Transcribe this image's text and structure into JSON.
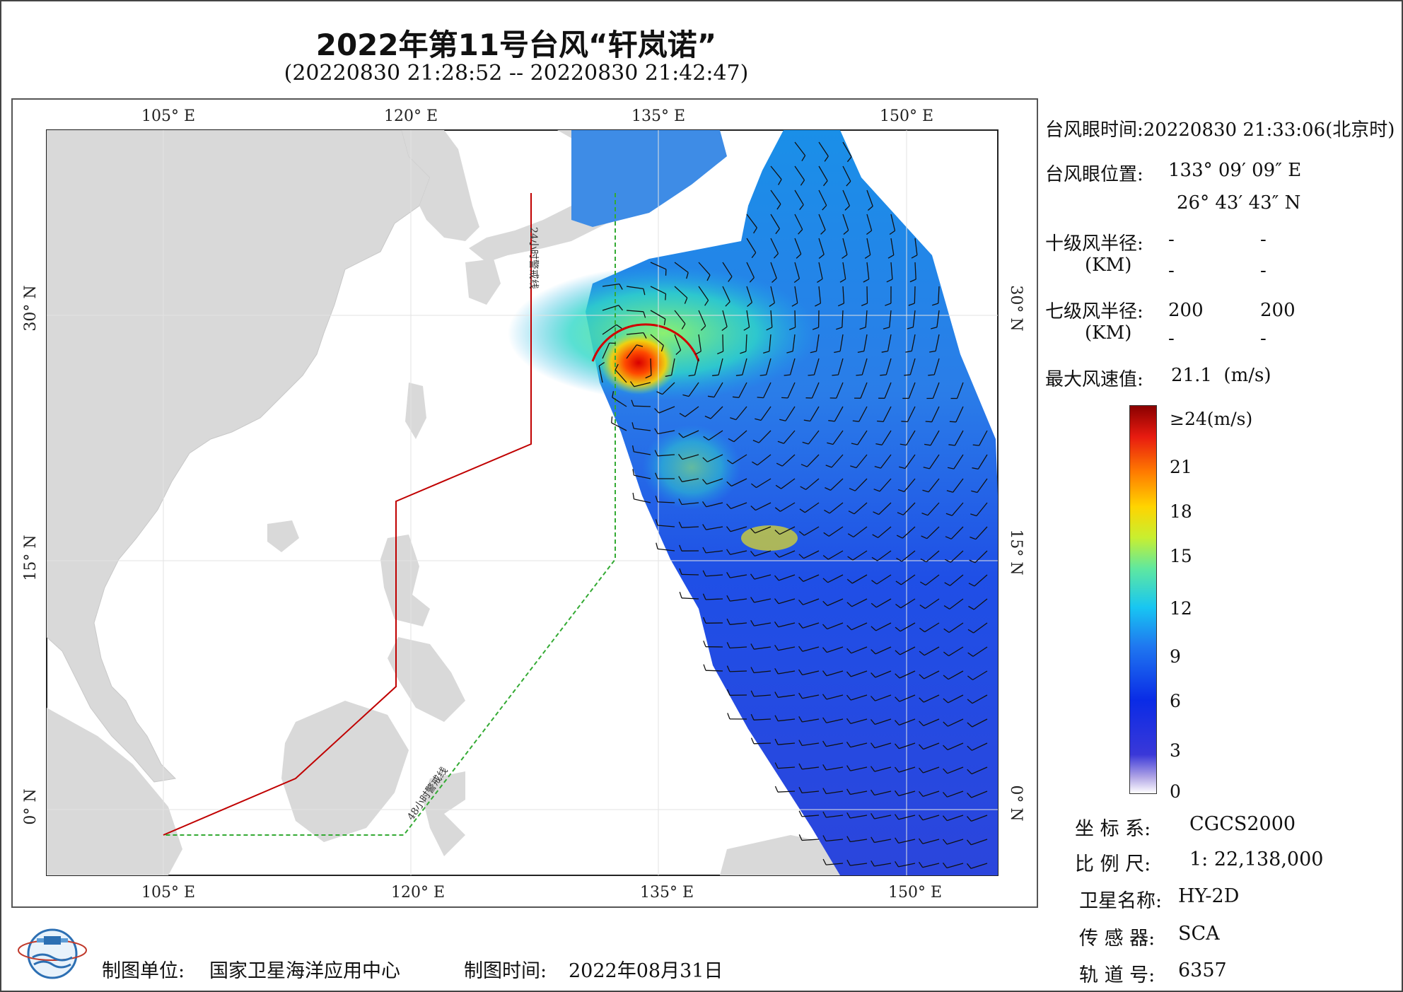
{
  "header": {
    "title": "2022年第11号台风“轩岚诺”",
    "subtitle": "(20220830 21:28:52 -- 20220830 21:42:47)"
  },
  "map": {
    "lon_ticks": [
      "105° E",
      "120° E",
      "135° E",
      "150° E"
    ],
    "lat_ticks": [
      "30° N",
      "15° N",
      "0° N"
    ],
    "warning_24h_label": "24小时警戒线",
    "warning_48h_label": "48小时警戒线",
    "colors": {
      "land": "#d9d9d9",
      "ocean": "#ffffff",
      "warning_24h": "#c00000",
      "warning_48h": "#33aa33"
    }
  },
  "info": {
    "eye_time_label": "台风眼时间:",
    "eye_time_value": "20220830 21:33:06(北京时)",
    "eye_pos_label": "台风眼位置:",
    "eye_pos_lon": "133° 09′ 09″ E",
    "eye_pos_lat": "26° 43′ 43″ N",
    "r10_label": "十级风半径:",
    "r10_unit": "(KM)",
    "r10_values": [
      "-",
      "-",
      "-",
      "-"
    ],
    "r7_label": "七级风半径:",
    "r7_unit": "(KM)",
    "r7_values": [
      "200",
      "200",
      "-",
      "-"
    ],
    "max_wind_label": "最大风速值:",
    "max_wind_value": "21.1  (m/s)"
  },
  "colorbar": {
    "labels": [
      "≥24(m/s)",
      "21",
      "18",
      "15",
      "12",
      "9",
      "6",
      "3",
      "0"
    ]
  },
  "metadata": {
    "crs_label": "坐 标 系:",
    "crs_value": "CGCS2000",
    "scale_label": "比 例 尺:",
    "scale_value": "1: 22,138,000",
    "satellite_label": "卫星名称:",
    "satellite_value": "HY-2D",
    "sensor_label": "传 感 器:",
    "sensor_value": "SCA",
    "orbit_label": "轨 道 号:",
    "orbit_value": "6357"
  },
  "footer": {
    "producer_label": "制图单位:",
    "producer_value": "国家卫星海洋应用中心",
    "date_label": "制图时间:",
    "date_value": "2022年08月31日"
  }
}
